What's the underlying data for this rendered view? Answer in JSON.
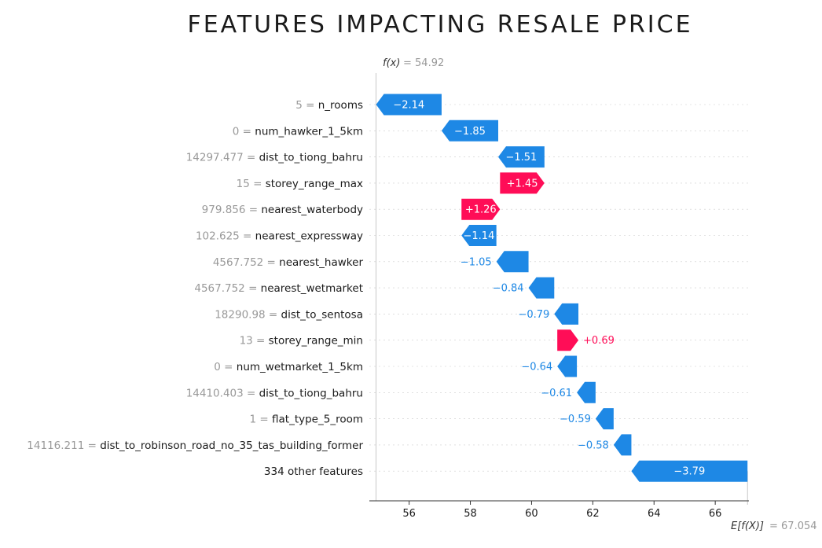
{
  "chart_data": {
    "type": "waterfall",
    "title": "FEATURES IMPACTING RESALE PRICE",
    "fx_label": "f(x)",
    "fx_value": "= 54.92",
    "efx_label": "E[f(X)]",
    "efx_value": "= 67.054",
    "xlim": [
      54.7,
      67.1
    ],
    "xticks": [
      56,
      58,
      60,
      62,
      64,
      66
    ],
    "colors": {
      "negative": "#1e88e5",
      "positive": "#ff0d57",
      "label_value": "#999999"
    },
    "rows": [
      {
        "value": "5",
        "feature": "n_rooms",
        "start": 57.06,
        "end": 54.92,
        "label": "−2.14",
        "sign": "neg",
        "label_inside": true
      },
      {
        "value": "0",
        "feature": "num_hawker_1_5km",
        "start": 58.91,
        "end": 57.06,
        "label": "−1.85",
        "sign": "neg",
        "label_inside": true
      },
      {
        "value": "14297.477",
        "feature": "dist_to_tiong_bahru",
        "start": 60.42,
        "end": 58.91,
        "label": "−1.51",
        "sign": "neg",
        "label_inside": true
      },
      {
        "value": "15",
        "feature": "storey_range_max",
        "start": 58.97,
        "end": 60.42,
        "label": "+1.45",
        "sign": "pos",
        "label_inside": true
      },
      {
        "value": "979.856",
        "feature": "nearest_waterbody",
        "start": 57.71,
        "end": 58.97,
        "label": "+1.26",
        "sign": "pos",
        "label_inside": true
      },
      {
        "value": "102.625",
        "feature": "nearest_expressway",
        "start": 58.85,
        "end": 57.71,
        "label": "−1.14",
        "sign": "neg",
        "label_inside": true
      },
      {
        "value": "4567.752",
        "feature": "nearest_hawker",
        "start": 59.9,
        "end": 58.85,
        "label": "−1.05",
        "sign": "neg",
        "label_inside": false
      },
      {
        "value": "4567.752",
        "feature": "nearest_wetmarket",
        "start": 60.74,
        "end": 59.9,
        "label": "−0.84",
        "sign": "neg",
        "label_inside": false
      },
      {
        "value": "18290.98",
        "feature": "dist_to_sentosa",
        "start": 61.53,
        "end": 60.74,
        "label": "−0.79",
        "sign": "neg",
        "label_inside": false
      },
      {
        "value": "13",
        "feature": "storey_range_min",
        "start": 60.84,
        "end": 61.53,
        "label": "+0.69",
        "sign": "pos",
        "label_inside": false
      },
      {
        "value": "0",
        "feature": "num_wetmarket_1_5km",
        "start": 61.48,
        "end": 60.84,
        "label": "−0.64",
        "sign": "neg",
        "label_inside": false
      },
      {
        "value": "14410.403",
        "feature": "dist_to_tiong_bahru",
        "start": 62.09,
        "end": 61.48,
        "label": "−0.61",
        "sign": "neg",
        "label_inside": false
      },
      {
        "value": "1",
        "feature": "flat_type_5_room",
        "start": 62.68,
        "end": 62.09,
        "label": "−0.59",
        "sign": "neg",
        "label_inside": false
      },
      {
        "value": "14116.211",
        "feature": "dist_to_robinson_road_no_35_tas_building_former",
        "start": 63.26,
        "end": 62.68,
        "label": "−0.58",
        "sign": "neg",
        "label_inside": false
      },
      {
        "value": "",
        "feature": "334 other features",
        "start": 67.054,
        "end": 63.26,
        "label": "−3.79",
        "sign": "neg",
        "label_inside": true
      }
    ]
  }
}
